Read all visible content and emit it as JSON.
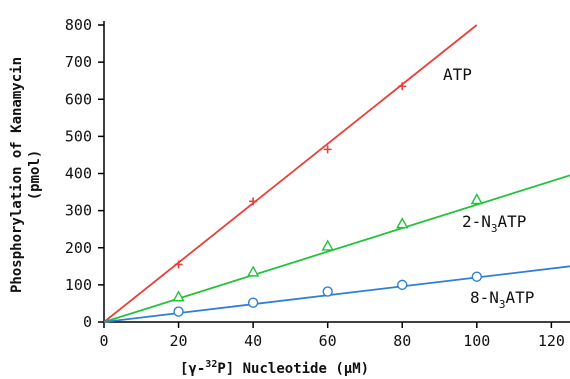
{
  "chart_data": {
    "type": "scatter",
    "title": "",
    "xlabel_parts": [
      "[γ-",
      "32",
      "P] Nucleotide (μM)"
    ],
    "ylabel": "Phosphorylation of Kanamycin",
    "ylabel2": "(pmol)",
    "xlim": [
      0,
      125
    ],
    "ylim": [
      0,
      800
    ],
    "x_ticks": [
      0,
      20,
      40,
      60,
      80,
      100,
      120
    ],
    "y_ticks": [
      0,
      100,
      200,
      300,
      400,
      500,
      600,
      700,
      800
    ],
    "grid": false,
    "series": [
      {
        "label": "ATP",
        "label_parts": [
          "ATP",
          "",
          ""
        ],
        "marker": "plus",
        "color": "#e8413b",
        "x": [
          20,
          40,
          60,
          80
        ],
        "y": [
          155,
          325,
          465,
          635
        ],
        "fit_end": [
          100,
          800
        ]
      },
      {
        "label": "2-N3ATP",
        "label_parts": [
          "2-N",
          "3",
          "ATP"
        ],
        "marker": "triangle",
        "color": "#22c33a",
        "x": [
          20,
          40,
          60,
          80,
          100
        ],
        "y": [
          68,
          135,
          205,
          265,
          330
        ],
        "fit_end": [
          125,
          395
        ]
      },
      {
        "label": "8-N3ATP",
        "label_parts": [
          "8-N",
          "3",
          "ATP"
        ],
        "marker": "circle",
        "color": "#2f7fd6",
        "x": [
          20,
          40,
          60,
          80,
          100
        ],
        "y": [
          28,
          52,
          82,
          100,
          122
        ],
        "fit_end": [
          125,
          150
        ]
      }
    ]
  }
}
